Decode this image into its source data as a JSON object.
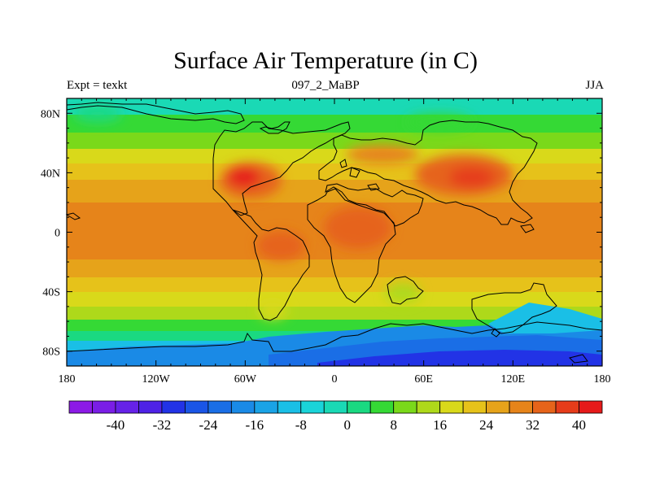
{
  "title": "Surface Air Temperature (in C)",
  "left_label": "Expt = texkt",
  "center_label": "097_2_MaBP",
  "right_label": "JJA",
  "map": {
    "lon_range": [
      -180,
      180
    ],
    "lat_range": [
      -90,
      90
    ],
    "lon_ticks": [
      {
        "value": -180,
        "label": "180"
      },
      {
        "value": -120,
        "label": "120W"
      },
      {
        "value": -60,
        "label": "60W"
      },
      {
        "value": 0,
        "label": "0"
      },
      {
        "value": 60,
        "label": "60E"
      },
      {
        "value": 120,
        "label": "120E"
      },
      {
        "value": 180,
        "label": "180"
      }
    ],
    "lat_ticks": [
      {
        "value": 80,
        "label": "80N"
      },
      {
        "value": 40,
        "label": "40N"
      },
      {
        "value": 0,
        "label": "0"
      },
      {
        "value": -40,
        "label": "40S"
      },
      {
        "value": -80,
        "label": "80S"
      }
    ]
  },
  "colorbar": {
    "colors": [
      "#8c1ae6",
      "#7a1ee6",
      "#6622e8",
      "#4e22e6",
      "#2233e6",
      "#1a55e6",
      "#1a6ee6",
      "#1a8ae6",
      "#1aa3e6",
      "#1abfe6",
      "#1ad4d9",
      "#1ad9b5",
      "#1ad981",
      "#35d935",
      "#7ad91a",
      "#aed91a",
      "#d9d91a",
      "#e6c21a",
      "#e6a31a",
      "#e6841a",
      "#e6641a",
      "#e63c1a",
      "#e61a1a"
    ],
    "labels": [
      {
        "boundary": 2,
        "text": "-40"
      },
      {
        "boundary": 4,
        "text": "-32"
      },
      {
        "boundary": 6,
        "text": "-24"
      },
      {
        "boundary": 8,
        "text": "-16"
      },
      {
        "boundary": 10,
        "text": "-8"
      },
      {
        "boundary": 12,
        "text": "0"
      },
      {
        "boundary": 14,
        "text": "8"
      },
      {
        "boundary": 16,
        "text": "16"
      },
      {
        "boundary": 18,
        "text": "24"
      },
      {
        "boundary": 20,
        "text": "32"
      },
      {
        "boundary": 22,
        "text": "40"
      }
    ]
  }
}
